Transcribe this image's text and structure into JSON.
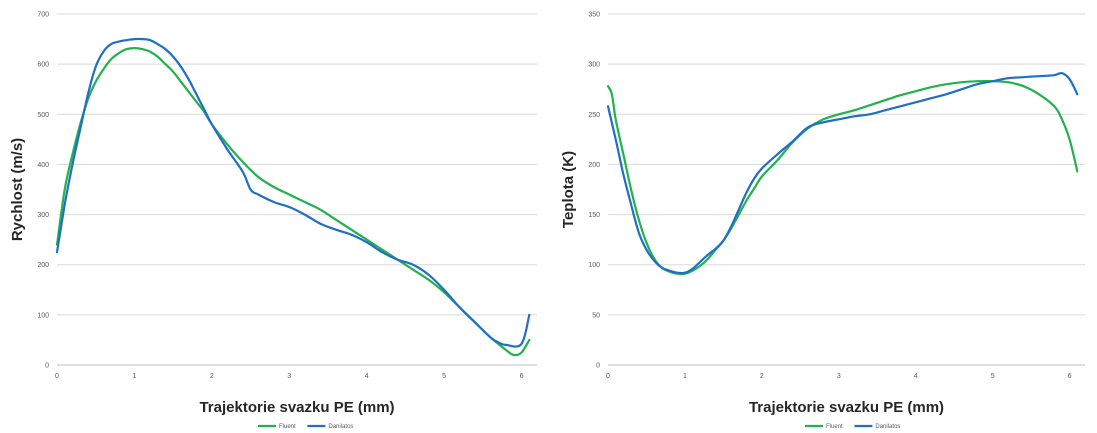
{
  "chart_data": [
    {
      "type": "line",
      "title": "",
      "xlabel": "Trajektorie svazku PE (mm)",
      "ylabel": "Rychlost (m/s)",
      "xlim": [
        0,
        6.2
      ],
      "ylim": [
        0,
        700
      ],
      "xticks": [
        "0",
        "1",
        "2",
        "3",
        "4",
        "5",
        "6"
      ],
      "yticks": [
        "0",
        "100",
        "200",
        "300",
        "400",
        "500",
        "600",
        "700"
      ],
      "grid": true,
      "legend_position": "bottom",
      "series": [
        {
          "name": "Fluent",
          "color": "#22b14c",
          "points": [
            [
              0,
              240
            ],
            [
              0.1,
              350
            ],
            [
              0.2,
              420
            ],
            [
              0.3,
              480
            ],
            [
              0.4,
              530
            ],
            [
              0.5,
              565
            ],
            [
              0.6,
              590
            ],
            [
              0.7,
              610
            ],
            [
              0.8,
              622
            ],
            [
              0.9,
              630
            ],
            [
              1.0,
              632
            ],
            [
              1.1,
              630
            ],
            [
              1.2,
              625
            ],
            [
              1.3,
              615
            ],
            [
              1.4,
              600
            ],
            [
              1.5,
              585
            ],
            [
              1.6,
              565
            ],
            [
              1.7,
              545
            ],
            [
              1.8,
              525
            ],
            [
              1.9,
              505
            ],
            [
              2.0,
              480
            ],
            [
              2.2,
              440
            ],
            [
              2.4,
              405
            ],
            [
              2.6,
              375
            ],
            [
              2.8,
              355
            ],
            [
              3.0,
              340
            ],
            [
              3.2,
              325
            ],
            [
              3.4,
              310
            ],
            [
              3.6,
              290
            ],
            [
              3.8,
              270
            ],
            [
              4.0,
              250
            ],
            [
              4.2,
              230
            ],
            [
              4.4,
              210
            ],
            [
              4.6,
              190
            ],
            [
              4.8,
              170
            ],
            [
              5.0,
              145
            ],
            [
              5.2,
              115
            ],
            [
              5.4,
              85
            ],
            [
              5.6,
              55
            ],
            [
              5.8,
              30
            ],
            [
              5.9,
              20
            ],
            [
              6.0,
              25
            ],
            [
              6.1,
              50
            ]
          ]
        },
        {
          "name": "Danilatos",
          "color": "#1f6fc5",
          "points": [
            [
              0,
              225
            ],
            [
              0.1,
              320
            ],
            [
              0.2,
              400
            ],
            [
              0.3,
              470
            ],
            [
              0.4,
              540
            ],
            [
              0.5,
              595
            ],
            [
              0.6,
              625
            ],
            [
              0.7,
              640
            ],
            [
              0.8,
              645
            ],
            [
              0.9,
              648
            ],
            [
              1.0,
              650
            ],
            [
              1.1,
              650
            ],
            [
              1.2,
              648
            ],
            [
              1.3,
              640
            ],
            [
              1.4,
              630
            ],
            [
              1.5,
              615
            ],
            [
              1.6,
              595
            ],
            [
              1.7,
              570
            ],
            [
              1.8,
              540
            ],
            [
              1.9,
              510
            ],
            [
              2.0,
              480
            ],
            [
              2.2,
              430
            ],
            [
              2.4,
              385
            ],
            [
              2.5,
              350
            ],
            [
              2.6,
              340
            ],
            [
              2.8,
              325
            ],
            [
              3.0,
              315
            ],
            [
              3.2,
              300
            ],
            [
              3.4,
              282
            ],
            [
              3.6,
              270
            ],
            [
              3.8,
              260
            ],
            [
              4.0,
              245
            ],
            [
              4.2,
              225
            ],
            [
              4.4,
              210
            ],
            [
              4.6,
              200
            ],
            [
              4.8,
              180
            ],
            [
              5.0,
              150
            ],
            [
              5.2,
              115
            ],
            [
              5.4,
              85
            ],
            [
              5.6,
              55
            ],
            [
              5.7,
              45
            ],
            [
              5.8,
              40
            ],
            [
              6.0,
              42
            ],
            [
              6.1,
              100
            ]
          ]
        }
      ]
    },
    {
      "type": "line",
      "title": "",
      "xlabel": "Trajektorie svazku PE (mm)",
      "ylabel": "Teplota (K)",
      "xlim": [
        0,
        6.2
      ],
      "ylim": [
        0,
        350
      ],
      "xticks": [
        "0",
        "1",
        "2",
        "3",
        "4",
        "5",
        "6"
      ],
      "yticks": [
        "0",
        "50",
        "100",
        "150",
        "200",
        "250",
        "300",
        "350"
      ],
      "grid": true,
      "legend_position": "bottom",
      "series": [
        {
          "name": "Fluent",
          "color": "#22b14c",
          "points": [
            [
              0,
              278
            ],
            [
              0.05,
              270
            ],
            [
              0.1,
              245
            ],
            [
              0.2,
              210
            ],
            [
              0.3,
              175
            ],
            [
              0.4,
              145
            ],
            [
              0.5,
              122
            ],
            [
              0.6,
              106
            ],
            [
              0.7,
              97
            ],
            [
              0.8,
              93
            ],
            [
              0.9,
              91
            ],
            [
              1.0,
              91
            ],
            [
              1.1,
              94
            ],
            [
              1.2,
              99
            ],
            [
              1.3,
              106
            ],
            [
              1.4,
              115
            ],
            [
              1.5,
              124
            ],
            [
              1.6,
              136
            ],
            [
              1.7,
              150
            ],
            [
              1.8,
              164
            ],
            [
              1.9,
              176
            ],
            [
              2.0,
              188
            ],
            [
              2.2,
              204
            ],
            [
              2.4,
              222
            ],
            [
              2.6,
              236
            ],
            [
              2.8,
              245
            ],
            [
              3.0,
              250
            ],
            [
              3.2,
              254
            ],
            [
              3.4,
              259
            ],
            [
              3.6,
              264
            ],
            [
              3.8,
              269
            ],
            [
              4.0,
              273
            ],
            [
              4.2,
              277
            ],
            [
              4.4,
              280
            ],
            [
              4.6,
              282
            ],
            [
              4.8,
              283
            ],
            [
              5.0,
              283
            ],
            [
              5.2,
              282
            ],
            [
              5.4,
              278
            ],
            [
              5.6,
              270
            ],
            [
              5.8,
              258
            ],
            [
              5.9,
              245
            ],
            [
              6.0,
              225
            ],
            [
              6.1,
              193
            ]
          ]
        },
        {
          "name": "Danilatos",
          "color": "#1f6fc5",
          "points": [
            [
              0,
              258
            ],
            [
              0.1,
              225
            ],
            [
              0.2,
              190
            ],
            [
              0.3,
              160
            ],
            [
              0.4,
              132
            ],
            [
              0.5,
              115
            ],
            [
              0.6,
              104
            ],
            [
              0.7,
              97
            ],
            [
              0.8,
              94
            ],
            [
              0.9,
              92
            ],
            [
              1.0,
              92
            ],
            [
              1.1,
              96
            ],
            [
              1.2,
              103
            ],
            [
              1.3,
              110
            ],
            [
              1.4,
              116
            ],
            [
              1.5,
              124
            ],
            [
              1.6,
              138
            ],
            [
              1.7,
              155
            ],
            [
              1.8,
              172
            ],
            [
              1.9,
              186
            ],
            [
              2.0,
              196
            ],
            [
              2.2,
              210
            ],
            [
              2.4,
              223
            ],
            [
              2.6,
              237
            ],
            [
              2.8,
              242
            ],
            [
              3.0,
              245
            ],
            [
              3.2,
              248
            ],
            [
              3.4,
              250
            ],
            [
              3.6,
              254
            ],
            [
              3.8,
              258
            ],
            [
              4.0,
              262
            ],
            [
              4.2,
              266
            ],
            [
              4.4,
              270
            ],
            [
              4.6,
              275
            ],
            [
              4.8,
              280
            ],
            [
              5.0,
              283
            ],
            [
              5.2,
              286
            ],
            [
              5.4,
              287
            ],
            [
              5.6,
              288
            ],
            [
              5.8,
              289
            ],
            [
              5.9,
              291
            ],
            [
              6.0,
              285
            ],
            [
              6.1,
              270
            ]
          ]
        }
      ]
    }
  ]
}
